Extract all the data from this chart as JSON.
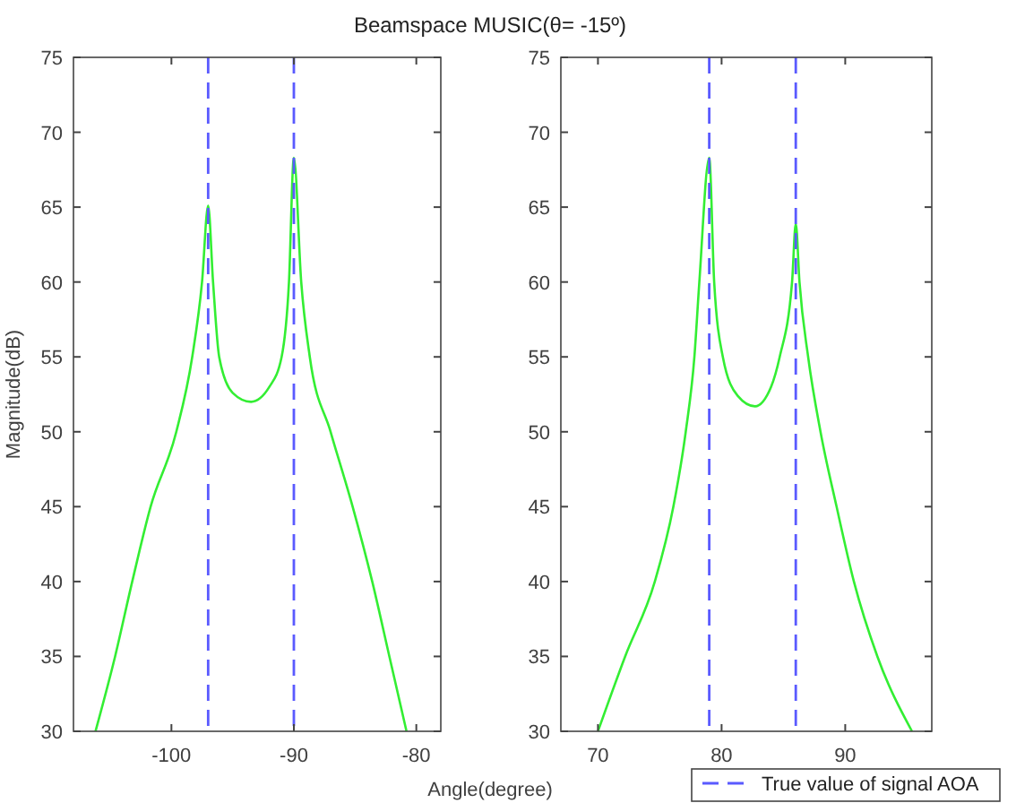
{
  "chart_data": [
    {
      "type": "line",
      "title": "Beamspace MUSIC(θ= -15º)",
      "xlabel": "Angle(degree)",
      "ylabel": "Magnitude(dB)",
      "xlim": [
        -108,
        -78
      ],
      "xticks": [
        -100,
        -90,
        -80
      ],
      "ylim": [
        30,
        75
      ],
      "yticks": [
        30,
        35,
        40,
        45,
        50,
        55,
        60,
        65,
        70,
        75
      ],
      "series": [
        {
          "color": "#33ee33",
          "x": [
            -106.2,
            -104.6,
            -103.2,
            -101.7,
            -99.6,
            -98.3,
            -97.5,
            -97,
            -96.6,
            -96.1,
            -95,
            -93.5,
            -92,
            -91,
            -90.4,
            -90,
            -89.4,
            -88.7,
            -87,
            -85.2,
            -83.6,
            -82.2,
            -80.8
          ],
          "values": [
            30,
            35,
            40,
            45,
            50,
            55,
            60,
            65.1,
            60,
            55,
            52.6,
            52,
            53,
            55,
            60,
            68.3,
            60,
            55,
            50,
            45,
            40,
            35,
            30
          ]
        }
      ],
      "ref_lines": [
        {
          "axis": "x",
          "value": -97,
          "color": "#5a5aff",
          "line_style": "dashed"
        },
        {
          "axis": "x",
          "value": -90,
          "color": "#5a5aff",
          "line_style": "dashed"
        }
      ]
    },
    {
      "type": "line",
      "xlim": [
        67,
        97
      ],
      "xticks": [
        70,
        80,
        90
      ],
      "ylim": [
        30,
        75
      ],
      "yticks": [
        30,
        35,
        40,
        45,
        50,
        55,
        60,
        65,
        70,
        75
      ],
      "legend": "bottom right",
      "series": [
        {
          "color": "#33ee33",
          "x": [
            70,
            72.2,
            74.6,
            76.1,
            77.1,
            77.8,
            78.2,
            79,
            79.4,
            80.1,
            81.3,
            82.7,
            84,
            84.7,
            85.7,
            86,
            86.3,
            87,
            88,
            89.3,
            90.7,
            92.6,
            95.4
          ],
          "values": [
            30,
            35,
            40,
            45,
            50,
            55,
            60,
            68.3,
            60,
            55,
            52.4,
            51.7,
            53,
            55,
            60,
            63.9,
            60,
            55,
            50,
            45,
            40,
            35,
            30
          ]
        }
      ],
      "ref_lines": [
        {
          "axis": "x",
          "value": 79,
          "color": "#5a5aff",
          "line_style": "dashed",
          "label": "True value of signal AOA"
        },
        {
          "axis": "x",
          "value": 86,
          "color": "#5a5aff",
          "line_style": "dashed"
        }
      ]
    }
  ]
}
